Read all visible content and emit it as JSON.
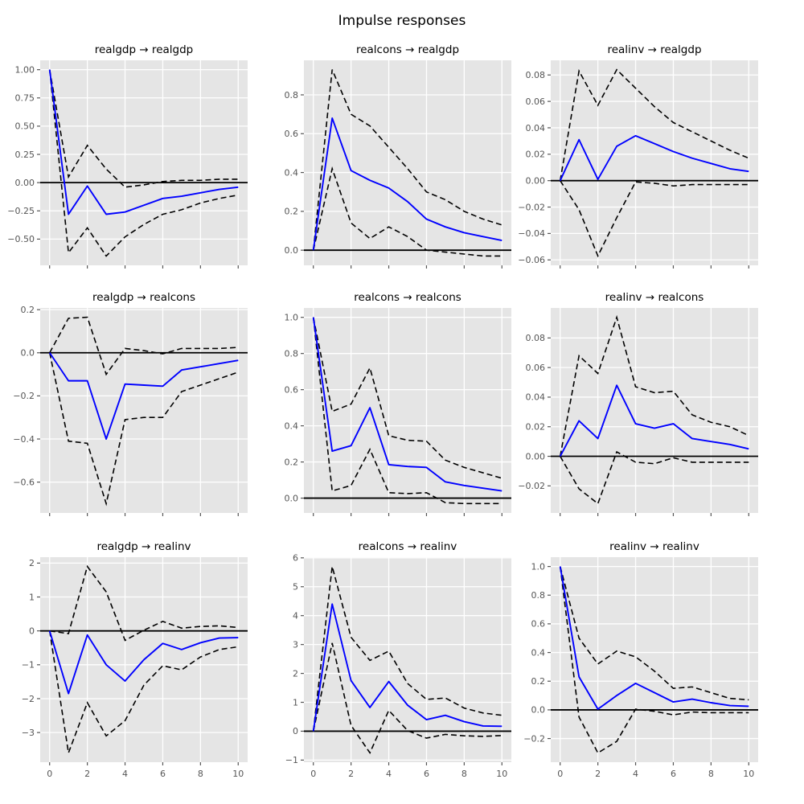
{
  "figure": {
    "suptitle": "Impulse responses"
  },
  "colors": {
    "irf_line": "#0000ff",
    "ci_line": "#000000",
    "zero_line": "#000000",
    "plot_bg": "#e5e5e5",
    "grid": "#ffffff",
    "tick_text": "#555555",
    "title_text": "#000000"
  },
  "chart_data": {
    "type": "line",
    "title": "Impulse responses",
    "grid": true,
    "legend": "none",
    "x": [
      0,
      1,
      2,
      3,
      4,
      5,
      6,
      7,
      8,
      9,
      10
    ],
    "xlim": [
      -0.5,
      10.5
    ],
    "xticks": [
      0,
      2,
      4,
      6,
      8,
      10
    ],
    "xtick_labels": [
      "0",
      "2",
      "4",
      "6",
      "8",
      "10"
    ],
    "series_names": [
      "irf",
      "upper_ci",
      "lower_ci"
    ],
    "subplots": [
      {
        "title": "realgdp → realgdp",
        "impulse": "realgdp",
        "response": "realgdp",
        "ylim": [
          -0.732,
          1.083
        ],
        "yticks": [
          1.0,
          0.75,
          0.5,
          0.25,
          0.0,
          -0.25,
          -0.5
        ],
        "ytick_labels": [
          "1.00",
          "0.75",
          "0.50",
          "0.25",
          "0.00",
          "−0.25",
          "−0.50"
        ],
        "irf": [
          1.0,
          -0.28,
          -0.03,
          -0.28,
          -0.26,
          -0.2,
          -0.14,
          -0.12,
          -0.09,
          -0.06,
          -0.04
        ],
        "upper_ci": [
          1.0,
          0.05,
          0.33,
          0.12,
          -0.04,
          -0.02,
          0.01,
          0.02,
          0.02,
          0.03,
          0.03
        ],
        "lower_ci": [
          1.0,
          -0.62,
          -0.4,
          -0.65,
          -0.48,
          -0.37,
          -0.28,
          -0.24,
          -0.18,
          -0.14,
          -0.11
        ]
      },
      {
        "title": "realcons → realgdp",
        "impulse": "realcons",
        "response": "realgdp",
        "ylim": [
          -0.078,
          0.978
        ],
        "yticks": [
          0.8,
          0.6,
          0.4,
          0.2,
          0.0
        ],
        "ytick_labels": [
          "0.8",
          "0.6",
          "0.4",
          "0.2",
          "0.0"
        ],
        "irf": [
          0.0,
          0.68,
          0.41,
          0.36,
          0.32,
          0.25,
          0.16,
          0.12,
          0.09,
          0.07,
          0.05
        ],
        "upper_ci": [
          0.0,
          0.93,
          0.7,
          0.64,
          0.53,
          0.42,
          0.3,
          0.26,
          0.2,
          0.16,
          0.13
        ],
        "lower_ci": [
          0.0,
          0.42,
          0.14,
          0.06,
          0.12,
          0.07,
          0.0,
          -0.01,
          -0.02,
          -0.03,
          -0.03
        ]
      },
      {
        "title": "realinv → realgdp",
        "impulse": "realinv",
        "response": "realgdp",
        "ylim": [
          -0.0641,
          0.0911
        ],
        "yticks": [
          0.08,
          0.06,
          0.04,
          0.02,
          0.0,
          -0.02,
          -0.04,
          -0.06
        ],
        "ytick_labels": [
          "0.08",
          "0.06",
          "0.04",
          "0.02",
          "0.00",
          "−0.02",
          "−0.04",
          "−0.06"
        ],
        "irf": [
          0.0,
          0.031,
          0.001,
          0.026,
          0.034,
          0.028,
          0.022,
          0.017,
          0.013,
          0.009,
          0.007
        ],
        "upper_ci": [
          0.0,
          0.083,
          0.057,
          0.084,
          0.07,
          0.056,
          0.044,
          0.037,
          0.03,
          0.023,
          0.017
        ],
        "lower_ci": [
          0.0,
          -0.022,
          -0.057,
          -0.028,
          -0.001,
          -0.002,
          -0.004,
          -0.003,
          -0.003,
          -0.003,
          -0.003
        ]
      },
      {
        "title": "realgdp → realcons",
        "impulse": "realgdp",
        "response": "realcons",
        "ylim": [
          -0.743,
          0.208
        ],
        "yticks": [
          0.2,
          0.0,
          -0.2,
          -0.4,
          -0.6
        ],
        "ytick_labels": [
          "0.2",
          "0.0",
          "−0.2",
          "−0.4",
          "−0.6"
        ],
        "irf": [
          0.0,
          -0.13,
          -0.13,
          -0.4,
          -0.145,
          -0.15,
          -0.155,
          -0.08,
          -0.065,
          -0.05,
          -0.035
        ],
        "upper_ci": [
          0.0,
          0.16,
          0.165,
          -0.1,
          0.02,
          0.01,
          -0.005,
          0.02,
          0.02,
          0.02,
          0.025
        ],
        "lower_ci": [
          0.0,
          -0.41,
          -0.42,
          -0.7,
          -0.31,
          -0.3,
          -0.3,
          -0.18,
          -0.15,
          -0.12,
          -0.09
        ]
      },
      {
        "title": "realcons → realcons",
        "impulse": "realcons",
        "response": "realcons",
        "ylim": [
          -0.082,
          1.052
        ],
        "yticks": [
          1.0,
          0.8,
          0.6,
          0.4,
          0.2,
          0.0
        ],
        "ytick_labels": [
          "1.0",
          "0.8",
          "0.6",
          "0.4",
          "0.2",
          "0.0"
        ],
        "irf": [
          1.0,
          0.26,
          0.29,
          0.5,
          0.185,
          0.175,
          0.17,
          0.09,
          0.07,
          0.055,
          0.04
        ],
        "upper_ci": [
          1.0,
          0.48,
          0.52,
          0.72,
          0.345,
          0.32,
          0.315,
          0.21,
          0.17,
          0.14,
          0.11
        ],
        "lower_ci": [
          1.0,
          0.04,
          0.07,
          0.27,
          0.03,
          0.025,
          0.03,
          -0.025,
          -0.03,
          -0.03,
          -0.03
        ]
      },
      {
        "title": "realinv → realcons",
        "impulse": "realinv",
        "response": "realcons",
        "ylim": [
          -0.0383,
          0.1003
        ],
        "yticks": [
          0.08,
          0.06,
          0.04,
          0.02,
          0.0,
          -0.02
        ],
        "ytick_labels": [
          "0.08",
          "0.06",
          "0.04",
          "0.02",
          "0.00",
          "−0.02"
        ],
        "irf": [
          0.0,
          0.024,
          0.012,
          0.048,
          0.022,
          0.019,
          0.022,
          0.012,
          0.01,
          0.008,
          0.005
        ],
        "upper_ci": [
          0.0,
          0.068,
          0.056,
          0.094,
          0.047,
          0.043,
          0.044,
          0.028,
          0.023,
          0.02,
          0.014
        ],
        "lower_ci": [
          0.0,
          -0.022,
          -0.032,
          0.003,
          -0.004,
          -0.005,
          -0.001,
          -0.004,
          -0.004,
          -0.004,
          -0.004
        ]
      },
      {
        "title": "realgdp → realinv",
        "impulse": "realgdp",
        "response": "realinv",
        "ylim": [
          -3.875,
          2.175
        ],
        "yticks": [
          2,
          1,
          0,
          -1,
          -2,
          -3
        ],
        "ytick_labels": [
          "2",
          "1",
          "0",
          "−1",
          "−2",
          "−3"
        ],
        "irf": [
          0.0,
          -1.85,
          -0.12,
          -1.0,
          -1.48,
          -0.85,
          -0.37,
          -0.55,
          -0.35,
          -0.21,
          -0.2
        ],
        "upper_ci": [
          0.0,
          -0.08,
          1.9,
          1.15,
          -0.28,
          0.02,
          0.28,
          0.08,
          0.13,
          0.15,
          0.1
        ],
        "lower_ci": [
          0.0,
          -3.6,
          -2.12,
          -3.1,
          -2.65,
          -1.6,
          -1.03,
          -1.15,
          -0.77,
          -0.55,
          -0.47
        ]
      },
      {
        "title": "realcons → realinv",
        "impulse": "realcons",
        "response": "realinv",
        "ylim": [
          -1.073,
          6.023
        ],
        "yticks": [
          6,
          5,
          4,
          3,
          2,
          1,
          0,
          -1
        ],
        "ytick_labels": [
          "6",
          "5",
          "4",
          "3",
          "2",
          "1",
          "0",
          "−1"
        ],
        "irf": [
          0.0,
          4.4,
          1.75,
          0.82,
          1.72,
          0.9,
          0.4,
          0.55,
          0.33,
          0.18,
          0.17
        ],
        "upper_ci": [
          0.0,
          5.7,
          3.25,
          2.45,
          2.77,
          1.65,
          1.1,
          1.15,
          0.8,
          0.63,
          0.55
        ],
        "lower_ci": [
          0.0,
          3.05,
          0.2,
          -0.75,
          0.72,
          0.02,
          -0.24,
          -0.11,
          -0.16,
          -0.18,
          -0.15
        ]
      },
      {
        "title": "realinv → realinv",
        "impulse": "realinv",
        "response": "realinv",
        "ylim": [
          -0.365,
          1.065
        ],
        "yticks": [
          1.0,
          0.8,
          0.6,
          0.4,
          0.2,
          0.0,
          -0.2
        ],
        "ytick_labels": [
          "1.0",
          "0.8",
          "0.6",
          "0.4",
          "0.2",
          "0.0",
          "−0.2"
        ],
        "irf": [
          1.0,
          0.23,
          0.005,
          0.1,
          0.185,
          0.12,
          0.055,
          0.075,
          0.05,
          0.03,
          0.025
        ],
        "upper_ci": [
          1.0,
          0.5,
          0.32,
          0.41,
          0.37,
          0.27,
          0.15,
          0.16,
          0.12,
          0.08,
          0.07
        ],
        "lower_ci": [
          1.0,
          -0.05,
          -0.3,
          -0.22,
          0.005,
          -0.01,
          -0.035,
          -0.015,
          -0.02,
          -0.02,
          -0.02
        ]
      }
    ]
  }
}
